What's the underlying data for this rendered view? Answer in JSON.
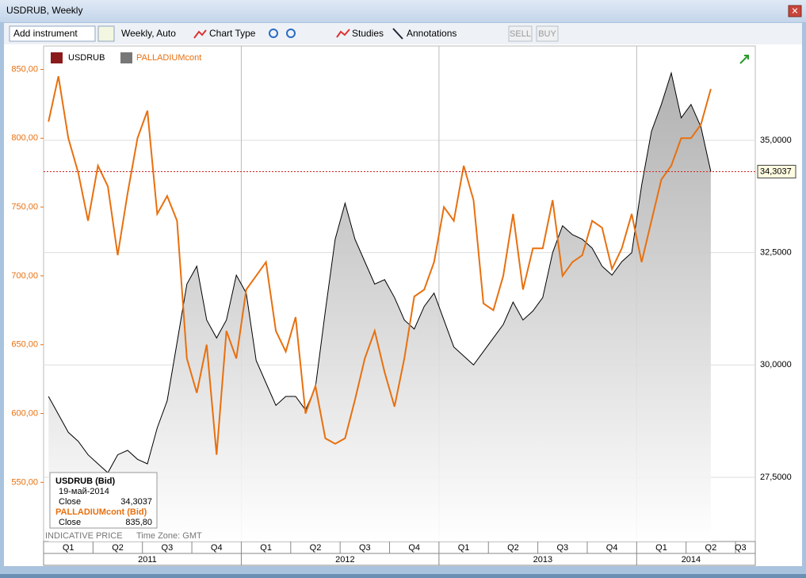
{
  "window": {
    "title": "USDRUB, Weekly"
  },
  "toolbar": {
    "add_instrument": "Add instrument",
    "period": "Weekly, Auto",
    "chart_type": "Chart Type",
    "studies": "Studies",
    "annotations": "Annotations",
    "sell": "SELL",
    "buy": "BUY"
  },
  "tooltip": {
    "name1": "USDRUB (Bid)",
    "date": "19-май-2014",
    "close1_label": "Close",
    "close1": "34,3037",
    "name2": "PALLADIUMcont (Bid)",
    "close2_label": "Close",
    "close2": "835,80"
  },
  "footer": {
    "indicative": "INDICATIVE PRICE",
    "timezone": "Time Zone: GMT"
  },
  "chart_data": {
    "type": "line",
    "categories": [
      null,
      null,
      "Q1",
      null,
      null,
      null,
      null,
      "Q2",
      null,
      null,
      null,
      null,
      "Q3",
      null,
      null,
      null,
      null,
      "Q4",
      null,
      null,
      null,
      null,
      "Q1",
      null,
      null,
      null,
      null,
      "Q2",
      null,
      null,
      null,
      null,
      "Q3",
      null,
      null,
      null,
      null,
      "Q4",
      null,
      null,
      null,
      null,
      "Q1",
      null,
      null,
      null,
      null,
      "Q2",
      null,
      null,
      null,
      null,
      "Q3",
      null,
      null,
      null,
      null,
      "Q4",
      null,
      null,
      null,
      null,
      "Q1",
      null,
      null,
      null,
      null,
      "Q2",
      null,
      null,
      "Q3",
      null
    ],
    "years": [
      null,
      null,
      null,
      null,
      null,
      null,
      null,
      null,
      null,
      null,
      "2011",
      null,
      null,
      null,
      null,
      null,
      null,
      null,
      null,
      null,
      null,
      null,
      null,
      null,
      null,
      null,
      null,
      null,
      null,
      null,
      "2012",
      null,
      null,
      null,
      null,
      null,
      null,
      null,
      null,
      null,
      null,
      null,
      null,
      null,
      null,
      null,
      null,
      null,
      null,
      null,
      "2013",
      null,
      null,
      null,
      null,
      null,
      null,
      null,
      null,
      null,
      null,
      null,
      null,
      null,
      null,
      "2014",
      null,
      null,
      null,
      null,
      null,
      null
    ],
    "series": [
      {
        "name": "USDRUB",
        "color": "#000000",
        "axis": "y2",
        "values": [
          29.3,
          28.9,
          28.5,
          28.3,
          28.0,
          27.8,
          27.6,
          28.0,
          28.1,
          27.9,
          27.8,
          28.6,
          29.2,
          30.5,
          31.8,
          32.2,
          31.0,
          30.6,
          31.0,
          32.0,
          31.6,
          30.1,
          29.6,
          29.1,
          29.3,
          29.3,
          29.0,
          29.5,
          31.2,
          32.8,
          33.6,
          32.8,
          32.3,
          31.8,
          31.9,
          31.5,
          31.0,
          30.8,
          31.3,
          31.6,
          31.0,
          30.4,
          30.2,
          30.0,
          30.3,
          30.6,
          30.9,
          31.4,
          31.0,
          31.2,
          31.5,
          32.5,
          33.1,
          32.9,
          32.8,
          32.6,
          32.2,
          32.0,
          32.3,
          32.5,
          34.0,
          35.2,
          35.8,
          36.5,
          35.5,
          35.8,
          35.3,
          34.3037,
          null,
          null,
          null,
          null
        ]
      },
      {
        "name": "PALLADIUMcont",
        "color": "#e8700f",
        "axis": "y",
        "values": [
          812,
          845,
          800,
          775,
          740,
          780,
          765,
          715,
          760,
          800,
          820,
          745,
          758,
          740,
          640,
          615,
          650,
          570,
          660,
          640,
          690,
          700,
          710,
          660,
          645,
          670,
          600,
          620,
          582,
          578,
          582,
          610,
          640,
          660,
          630,
          605,
          640,
          685,
          690,
          710,
          750,
          740,
          780,
          755,
          680,
          675,
          700,
          745,
          690,
          720,
          720,
          755,
          700,
          710,
          715,
          740,
          735,
          705,
          720,
          745,
          710,
          740,
          770,
          780,
          800,
          800,
          810,
          835.8,
          null,
          null,
          null,
          null
        ]
      }
    ],
    "ylim": [
      507,
      867
    ],
    "yticks": [
      {
        "value": 550,
        "label": "550,00"
      },
      {
        "value": 600,
        "label": "600,00"
      },
      {
        "value": 650,
        "label": "650,00"
      },
      {
        "value": 700,
        "label": "700,00"
      },
      {
        "value": 750,
        "label": "750,00"
      },
      {
        "value": 800,
        "label": "800,00"
      },
      {
        "value": 850,
        "label": "850,00"
      }
    ],
    "y2lim": [
      26.07,
      37.1
    ],
    "y2ticks": [
      {
        "value": 27.5,
        "label": "27,5000"
      },
      {
        "value": 30,
        "label": "30,0000"
      },
      {
        "value": 32.5,
        "label": "32,5000"
      },
      {
        "value": 35,
        "label": "35,0000"
      }
    ],
    "price_line": {
      "value": 34.3037,
      "label": "34,3037"
    },
    "grid": true
  }
}
